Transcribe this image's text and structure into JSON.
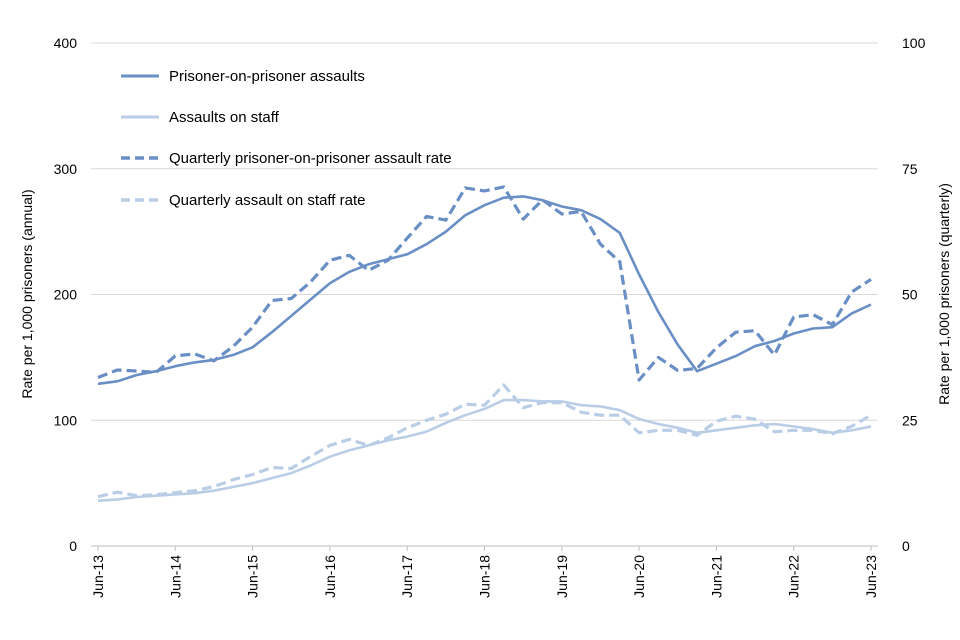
{
  "chart_data": {
    "type": "line",
    "title": "",
    "ylabel": "Rate per 1,000 prisoners (annual)",
    "y2label": "Rate per 1,000 prisoners (quarterly)",
    "ylim": [
      0,
      400
    ],
    "y2lim": [
      0,
      100
    ],
    "yticks": [
      "0",
      "100",
      "200",
      "300",
      "400"
    ],
    "y2ticks": [
      "0",
      "25",
      "50",
      "75",
      "100"
    ],
    "xticks": [
      "Jun-13",
      "Jun-14",
      "Jun-15",
      "Jun-16",
      "Jun-17",
      "Jun-18",
      "Jun-19",
      "Jun-20",
      "Jun-21",
      "Jun-22",
      "Jun-23"
    ],
    "grid": true,
    "legend_position": "top-left",
    "colors": {
      "dark": "#6a8fc5",
      "light": "#bacde6",
      "grid": "#d9d9d9",
      "axis": "#bfbfbf"
    },
    "series": [
      {
        "name": "Prisoner-on-prisoner assaults",
        "axis": "left",
        "style": "solid",
        "color": "#6a8fc5",
        "values": [
          129,
          131,
          136,
          139,
          143,
          146,
          148,
          152,
          158,
          170,
          183,
          196,
          209,
          218,
          224,
          228,
          232,
          240,
          250,
          263,
          271,
          277,
          278,
          275,
          270,
          267,
          260,
          249,
          216,
          186,
          160,
          139,
          145,
          151,
          159,
          163,
          169,
          173,
          174,
          185,
          192
        ]
      },
      {
        "name": "Assaults on staff",
        "axis": "left",
        "style": "solid",
        "color": "#bacde6",
        "values": [
          36,
          37,
          39,
          40,
          41,
          42,
          44,
          47,
          50,
          54,
          58,
          64,
          71,
          76,
          80,
          84,
          87,
          91,
          98,
          104,
          109,
          116,
          116,
          115,
          115,
          112,
          111,
          108,
          101,
          97,
          94,
          90,
          92,
          94,
          96,
          97,
          95,
          93,
          90,
          92,
          95
        ]
      },
      {
        "name": "Quarterly prisoner-on-prisoner assault rate",
        "axis": "right",
        "style": "dashed",
        "color": "#6a8fc5",
        "values": [
          33.5,
          35.0,
          34.8,
          34.5,
          37.8,
          38.2,
          36.8,
          39.7,
          43.5,
          48.8,
          49.2,
          52.5,
          56.8,
          57.8,
          54.8,
          56.8,
          61.2,
          65.5,
          64.8,
          71.2,
          70.6,
          71.4,
          65.0,
          68.8,
          66.0,
          66.5,
          60.0,
          56.5,
          33.0,
          37.5,
          34.9,
          35.3,
          39.4,
          42.5,
          42.8,
          38.0,
          45.5,
          46.0,
          44.0,
          50.5,
          53.0
        ]
      },
      {
        "name": "Quarterly assault on staff rate",
        "axis": "right",
        "style": "dashed",
        "color": "#bacde6",
        "values": [
          9.8,
          10.7,
          10.0,
          10.2,
          10.6,
          11.0,
          11.8,
          13.2,
          14.2,
          15.6,
          15.4,
          17.8,
          20.0,
          21.2,
          20.0,
          21.5,
          23.5,
          25.0,
          26.2,
          28.2,
          28.0,
          32.0,
          27.5,
          28.5,
          28.5,
          26.6,
          26.0,
          26.0,
          22.5,
          23.0,
          23.0,
          22.0,
          24.8,
          25.8,
          25.2,
          22.7,
          23.0,
          23.0,
          22.3,
          23.8,
          26.0
        ]
      }
    ]
  }
}
